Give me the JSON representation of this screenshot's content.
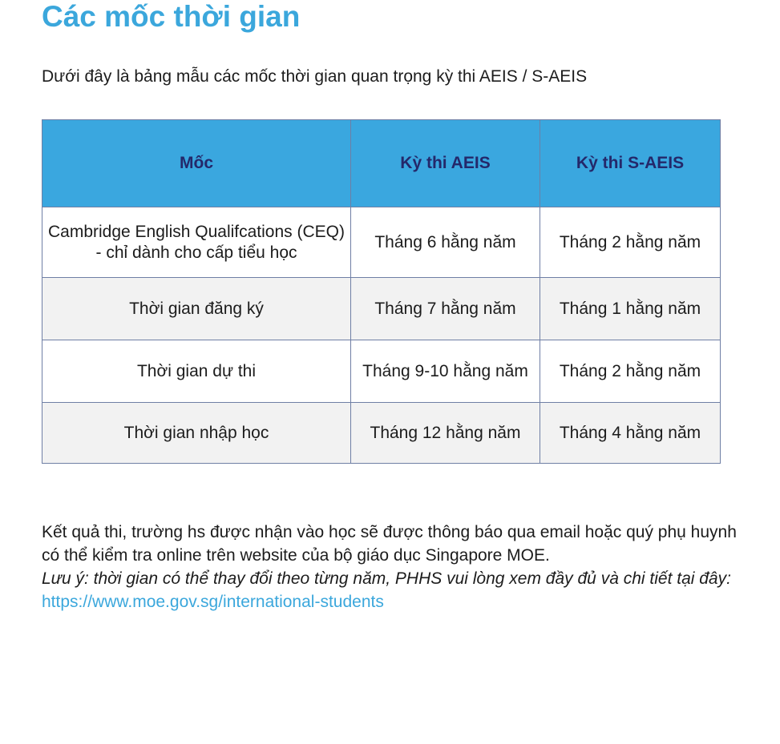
{
  "title": "Các mốc thời gian",
  "subtitle": "Dưới đây là bảng mẫu các mốc thời gian quan trọng kỳ thi AEIS / S-AEIS",
  "table": {
    "headers": [
      "Mốc",
      "Kỳ thi AEIS",
      "Kỳ thi S-AEIS"
    ],
    "rows": [
      [
        "Cambridge English Qualifcations (CEQ) - chỉ dành cho cấp tiểu học",
        "Tháng 6 hằng năm",
        "Tháng 2 hằng năm"
      ],
      [
        "Thời gian đăng ký",
        "Tháng 7 hằng năm",
        "Tháng 1 hằng năm"
      ],
      [
        "Thời gian dự thi",
        "Tháng 9-10 hằng năm",
        "Tháng 2 hằng năm"
      ],
      [
        "Thời gian nhập học",
        "Tháng 12 hằng năm",
        "Tháng 4 hằng năm"
      ]
    ]
  },
  "body": {
    "paragraph": "Kết quả thi, trường hs được nhận vào học sẽ được thông báo qua email hoặc quý phụ huynh có thể kiểm tra online trên website của bộ giáo dục Singapore MOE.",
    "note": "Lưu ý: thời gian có thể thay đổi theo từng năm, PHHS vui lòng xem đầy đủ và chi tiết tại đây: ",
    "link": "https://www.moe.gov.sg/international-students"
  },
  "colors": {
    "accent": "#3ba7dc",
    "header_bg": "#3aa7df",
    "header_text": "#24286a",
    "alt_row": "#f2f2f2"
  }
}
